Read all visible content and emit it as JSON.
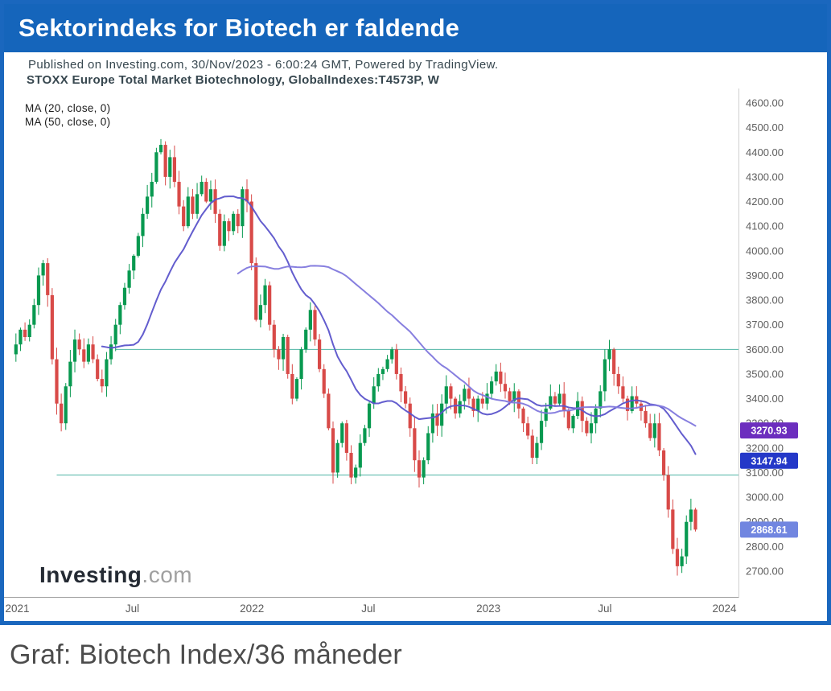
{
  "header": {
    "title": "Sektorindeks for Biotech er faldende"
  },
  "meta": {
    "published_line": "Published on Investing.com, 30/Nov/2023 - 6:00:24 GMT, Powered by TradingView.",
    "symbol_line": "STOXX Europe Total Market Biotechnology, GlobalIndexes:T4573P, W",
    "legend": [
      "MA (20, close, 0)",
      "MA (50, close, 0)"
    ]
  },
  "logo": {
    "name": "Investing",
    "suffix": ".com"
  },
  "caption": "Graf: Biotech Index/36 måneder",
  "colors": {
    "brand_blue": "#1565bb",
    "border_blue": "#1a67be",
    "up_green": "#089950",
    "down_red": "#d84a48",
    "level_teal": "#4fb5a5"
  },
  "chart_data": {
    "type": "candlestick",
    "title": "STOXX Europe Total Market Biotechnology",
    "symbol": "GlobalIndexes:T4573P",
    "interval": "W",
    "y_axis": {
      "min": 2700,
      "max": 4600,
      "step": 100,
      "format": "0.00"
    },
    "x_ticks": [
      {
        "label": "2021",
        "week": 0.3
      },
      {
        "label": "Jul",
        "week": 25.7
      },
      {
        "label": "2022",
        "week": 52.1
      },
      {
        "label": "Jul",
        "week": 77.8
      },
      {
        "label": "2023",
        "week": 104.3
      },
      {
        "label": "Jul",
        "week": 130.0
      },
      {
        "label": "2024",
        "week": 156.4
      }
    ],
    "weeks_total": 160,
    "first_open": 3580,
    "closes": [
      3620,
      3680,
      3650,
      3700,
      3780,
      3900,
      3950,
      3820,
      3560,
      3380,
      3300,
      3450,
      3550,
      3640,
      3600,
      3550,
      3620,
      3560,
      3480,
      3450,
      3560,
      3620,
      3700,
      3780,
      3850,
      3920,
      3980,
      4060,
      4150,
      4220,
      4280,
      4400,
      4430,
      4300,
      4380,
      4280,
      4180,
      4100,
      4220,
      4150,
      4230,
      4280,
      4200,
      4250,
      4150,
      4020,
      4120,
      4080,
      4150,
      4100,
      4250,
      4200,
      3950,
      3720,
      3780,
      3860,
      3700,
      3600,
      3560,
      3650,
      3500,
      3400,
      3480,
      3600,
      3680,
      3760,
      3640,
      3520,
      3420,
      3280,
      3100,
      3220,
      3300,
      3180,
      3080,
      3120,
      3220,
      3280,
      3380,
      3450,
      3500,
      3520,
      3560,
      3600,
      3500,
      3430,
      3380,
      3280,
      3150,
      3080,
      3150,
      3260,
      3340,
      3290,
      3380,
      3450,
      3400,
      3340,
      3390,
      3440,
      3400,
      3350,
      3400,
      3380,
      3420,
      3470,
      3510,
      3460,
      3430,
      3390,
      3430,
      3360,
      3300,
      3250,
      3160,
      3220,
      3310,
      3360,
      3410,
      3380,
      3420,
      3350,
      3280,
      3330,
      3390,
      3310,
      3260,
      3300,
      3360,
      3430,
      3560,
      3600,
      3500,
      3450,
      3400,
      3350,
      3410,
      3380,
      3350,
      3300,
      3240,
      3300,
      3190,
      3090,
      2950,
      2790,
      2720,
      2760,
      2900,
      2950,
      2868.61
    ],
    "candle_colors": {
      "up": "#089950",
      "down": "#d84a48"
    },
    "levels": [
      {
        "value": 3600,
        "from_week": 22
      },
      {
        "value": 3090,
        "from_week": 9
      }
    ],
    "overlays": {
      "ma20": {
        "period": 20,
        "color": "#5b54cb",
        "last_label": "3147.94",
        "label_bg": "#2438c8"
      },
      "ma50": {
        "period": 50,
        "color": "#8178dd",
        "last_label": "3270.93",
        "label_bg": "#6c2ebe"
      },
      "last_price": {
        "value": "2868.61",
        "label_bg": "#7186e0"
      }
    }
  }
}
